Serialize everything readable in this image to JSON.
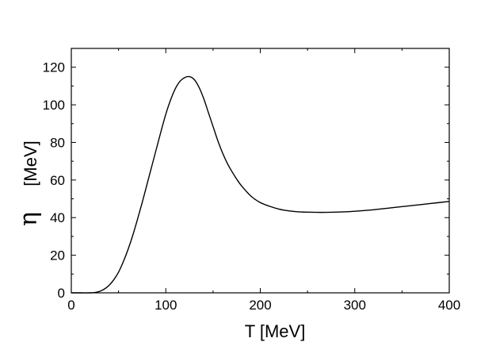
{
  "chart_data": {
    "type": "line",
    "title": "",
    "xlabel": "T [MeV]",
    "ylabel_symbol": "η",
    "ylabel_unit": "[MeV]",
    "xlim": [
      0,
      400
    ],
    "ylim": [
      0,
      130
    ],
    "xticks": [
      0,
      100,
      200,
      300,
      400
    ],
    "yticks": [
      0,
      20,
      40,
      60,
      80,
      100,
      120
    ],
    "grid": false,
    "series": [
      {
        "x": [
          0,
          10,
          20,
          25,
          30,
          35,
          40,
          45,
          50,
          55,
          60,
          65,
          70,
          75,
          80,
          85,
          90,
          95,
          100,
          105,
          110,
          115,
          120,
          125,
          130,
          135,
          140,
          145,
          150,
          155,
          160,
          165,
          170,
          175,
          180,
          190,
          200,
          210,
          220,
          230,
          240,
          250,
          260,
          270,
          280,
          290,
          300,
          320,
          340,
          360,
          380,
          400
        ],
        "y": [
          0,
          0,
          0,
          0.2,
          0.8,
          2,
          4,
          7,
          11,
          16.5,
          23,
          30.5,
          39,
          48,
          57.5,
          67,
          76.5,
          86,
          95,
          102.5,
          108.5,
          112.5,
          114.5,
          115,
          113.5,
          109.5,
          103.5,
          96,
          88.5,
          81,
          74.5,
          69,
          64.5,
          60.5,
          57,
          51.5,
          48,
          46,
          44.5,
          43.6,
          43.1,
          42.9,
          42.8,
          42.8,
          42.9,
          43.1,
          43.4,
          44.2,
          45.3,
          46.4,
          47.5,
          48.6
        ],
        "color": "#000000"
      }
    ]
  }
}
